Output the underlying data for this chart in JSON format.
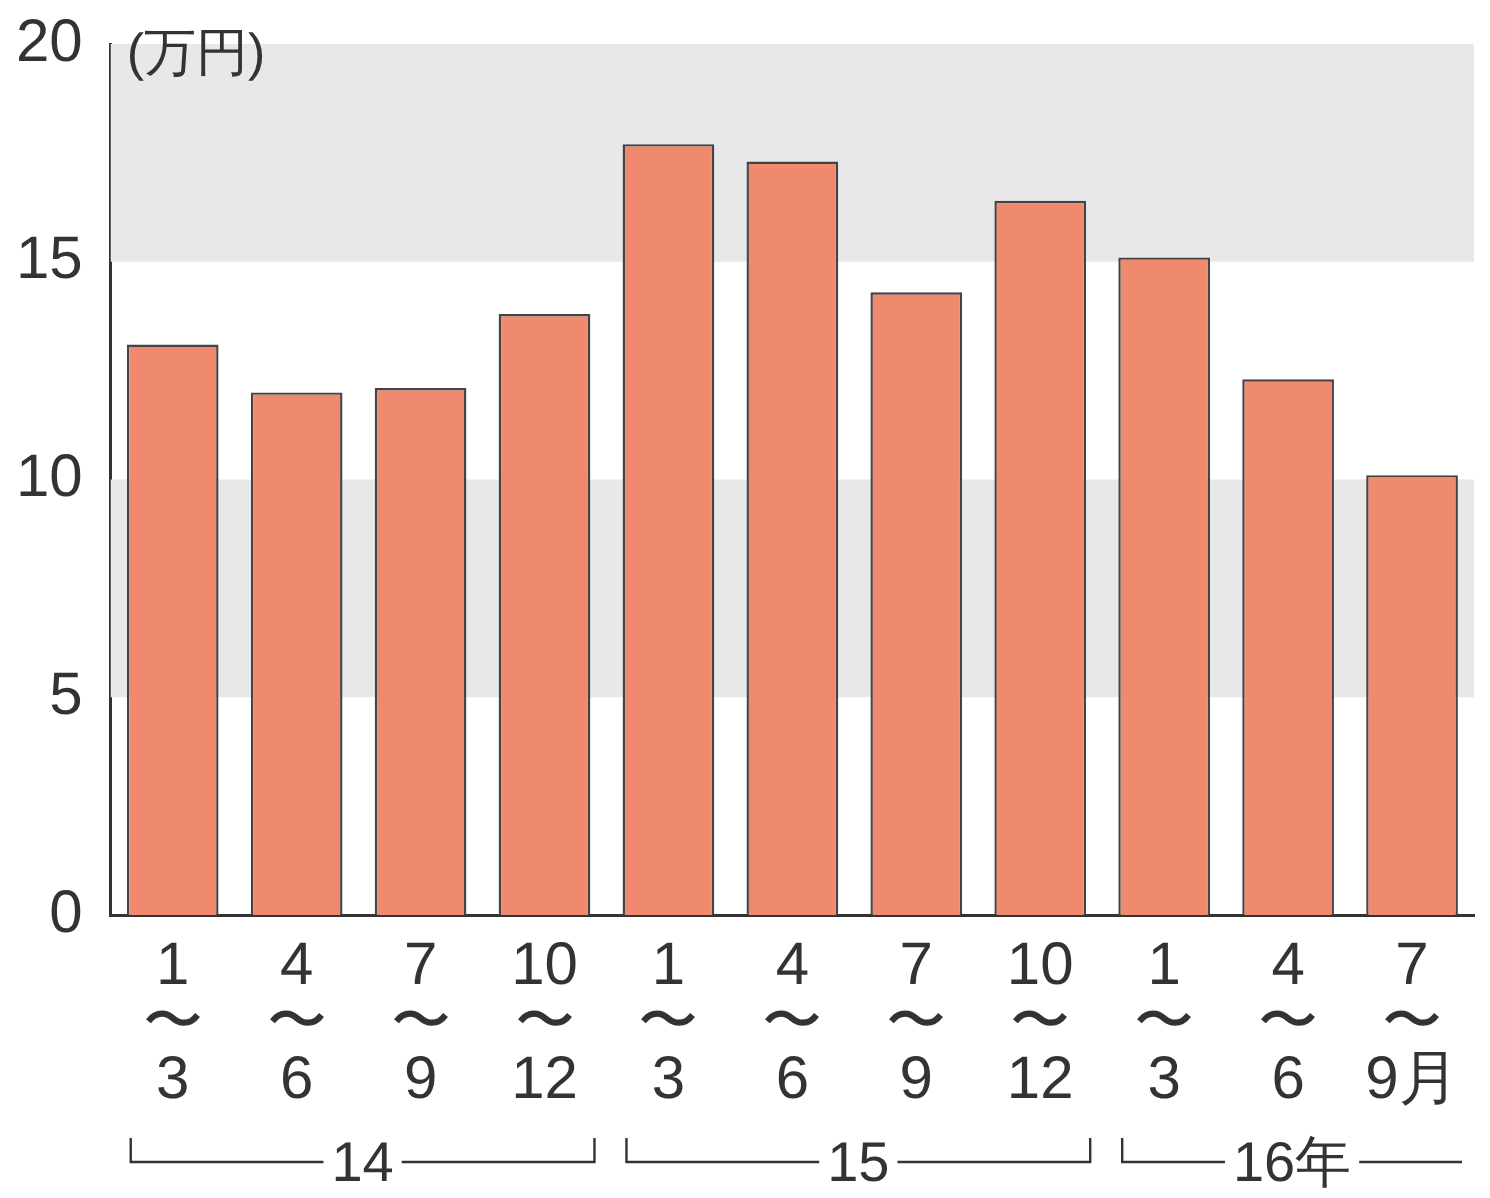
{
  "chart_data": {
    "type": "bar",
    "ylabel": "(万円)",
    "categories": [
      "1〜3",
      "4〜6",
      "7〜9",
      "10〜12",
      "1〜3",
      "4〜6",
      "7〜9",
      "10〜12",
      "1〜3",
      "4〜6",
      "7〜9月"
    ],
    "values": [
      13.1,
      12.0,
      12.1,
      13.8,
      17.7,
      17.3,
      14.3,
      16.4,
      15.1,
      12.3,
      10.1
    ],
    "color": "#f08a6e",
    "ylim": [
      0,
      20
    ],
    "yticks": [
      0,
      5,
      10,
      15,
      20
    ],
    "grid": false,
    "legend": false,
    "bands": [
      {
        "axis": "y",
        "from": 5,
        "to": 10,
        "color": "#e8e8e8"
      },
      {
        "axis": "y",
        "from": 15,
        "to": 20,
        "color": "#e8e8e8"
      }
    ],
    "annotations": [
      "14",
      "15",
      "16年"
    ]
  }
}
